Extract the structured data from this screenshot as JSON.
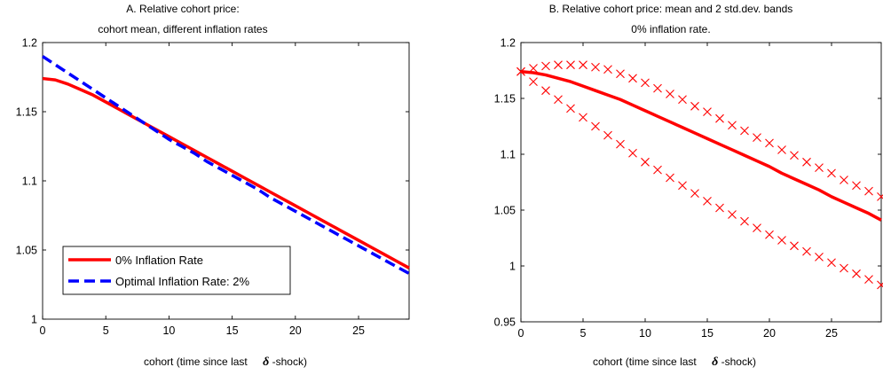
{
  "chart_data": [
    {
      "type": "line",
      "title_lines": [
        "A. Relative cohort price:",
        "cohort mean, different inflation rates"
      ],
      "xlabel_parts": [
        "cohort (time since last",
        "δ",
        "-shock)"
      ],
      "ylabel": "",
      "xlim": [
        0,
        29
      ],
      "ylim": [
        1.0,
        1.2
      ],
      "xticks": [
        "0",
        "5",
        "10",
        "15",
        "20",
        "25"
      ],
      "yticks": [
        "1",
        "1.05",
        "1.1",
        "1.15",
        "1.2"
      ],
      "legend_position": "bottom-left",
      "series": [
        {
          "name": "0% Inflation Rate",
          "color": "#ff0000",
          "style": "solid",
          "x": [
            0,
            1,
            2,
            3,
            4,
            5,
            6,
            7,
            8,
            9,
            10,
            11,
            12,
            13,
            14,
            15,
            16,
            17,
            18,
            19,
            20,
            21,
            22,
            23,
            24,
            25,
            26,
            27,
            28,
            29
          ],
          "y": [
            1.174,
            1.173,
            1.17,
            1.166,
            1.162,
            1.157,
            1.152,
            1.147,
            1.142,
            1.137,
            1.132,
            1.127,
            1.122,
            1.117,
            1.112,
            1.107,
            1.102,
            1.097,
            1.092,
            1.087,
            1.082,
            1.077,
            1.072,
            1.067,
            1.062,
            1.057,
            1.052,
            1.047,
            1.042,
            1.037
          ]
        },
        {
          "name": "Optimal Inflation Rate: 2%",
          "color": "#0000ff",
          "style": "dashed",
          "x": [
            0,
            1,
            2,
            3,
            4,
            5,
            6,
            7,
            8,
            9,
            10,
            11,
            12,
            13,
            14,
            15,
            16,
            17,
            18,
            19,
            20,
            21,
            22,
            23,
            24,
            25,
            26,
            27,
            28,
            29
          ],
          "y": [
            1.19,
            1.184,
            1.178,
            1.172,
            1.166,
            1.16,
            1.154,
            1.148,
            1.142,
            1.136,
            1.13,
            1.125,
            1.12,
            1.114,
            1.109,
            1.104,
            1.099,
            1.094,
            1.088,
            1.083,
            1.078,
            1.073,
            1.068,
            1.063,
            1.058,
            1.053,
            1.048,
            1.043,
            1.038,
            1.033
          ]
        }
      ]
    },
    {
      "type": "line",
      "title_lines": [
        "B. Relative cohort price: mean and 2 std.dev. bands",
        "0% inflation rate."
      ],
      "xlabel_parts": [
        "cohort (time since last",
        "δ",
        "-shock)"
      ],
      "ylabel": "",
      "xlim": [
        0,
        29
      ],
      "ylim": [
        0.95,
        1.2
      ],
      "xticks": [
        "0",
        "5",
        "10",
        "15",
        "20",
        "25"
      ],
      "yticks": [
        "0.95",
        "1",
        "1.05",
        "1.1",
        "1.15",
        "1.2"
      ],
      "series": [
        {
          "color": "#ff0000",
          "style": "solid",
          "x": [
            0,
            1,
            2,
            3,
            4,
            5,
            6,
            7,
            8,
            9,
            10,
            11,
            12,
            13,
            14,
            15,
            16,
            17,
            18,
            19,
            20,
            21,
            22,
            23,
            24,
            25,
            26,
            27,
            28,
            29
          ],
          "y": [
            1.174,
            1.173,
            1.171,
            1.168,
            1.165,
            1.161,
            1.157,
            1.153,
            1.149,
            1.144,
            1.139,
            1.134,
            1.129,
            1.124,
            1.119,
            1.114,
            1.109,
            1.104,
            1.099,
            1.094,
            1.089,
            1.083,
            1.078,
            1.073,
            1.068,
            1.062,
            1.057,
            1.052,
            1.047,
            1.041
          ]
        },
        {
          "color": "#ff0000",
          "style": "x-markers",
          "x": [
            0,
            1,
            2,
            3,
            4,
            5,
            6,
            7,
            8,
            9,
            10,
            11,
            12,
            13,
            14,
            15,
            16,
            17,
            18,
            19,
            20,
            21,
            22,
            23,
            24,
            25,
            26,
            27,
            28,
            29
          ],
          "y": [
            1.174,
            1.177,
            1.179,
            1.18,
            1.18,
            1.18,
            1.178,
            1.176,
            1.172,
            1.168,
            1.164,
            1.159,
            1.154,
            1.149,
            1.143,
            1.138,
            1.132,
            1.126,
            1.121,
            1.115,
            1.11,
            1.104,
            1.099,
            1.093,
            1.088,
            1.083,
            1.077,
            1.072,
            1.067,
            1.062
          ]
        },
        {
          "color": "#ff0000",
          "style": "x-markers",
          "x": [
            0,
            1,
            2,
            3,
            4,
            5,
            6,
            7,
            8,
            9,
            10,
            11,
            12,
            13,
            14,
            15,
            16,
            17,
            18,
            19,
            20,
            21,
            22,
            23,
            24,
            25,
            26,
            27,
            28,
            29
          ],
          "y": [
            1.174,
            1.165,
            1.157,
            1.149,
            1.141,
            1.133,
            1.125,
            1.117,
            1.109,
            1.101,
            1.093,
            1.086,
            1.079,
            1.072,
            1.065,
            1.058,
            1.052,
            1.046,
            1.04,
            1.034,
            1.028,
            1.023,
            1.018,
            1.013,
            1.008,
            1.003,
            0.998,
            0.993,
            0.988,
            0.983
          ]
        }
      ]
    }
  ]
}
